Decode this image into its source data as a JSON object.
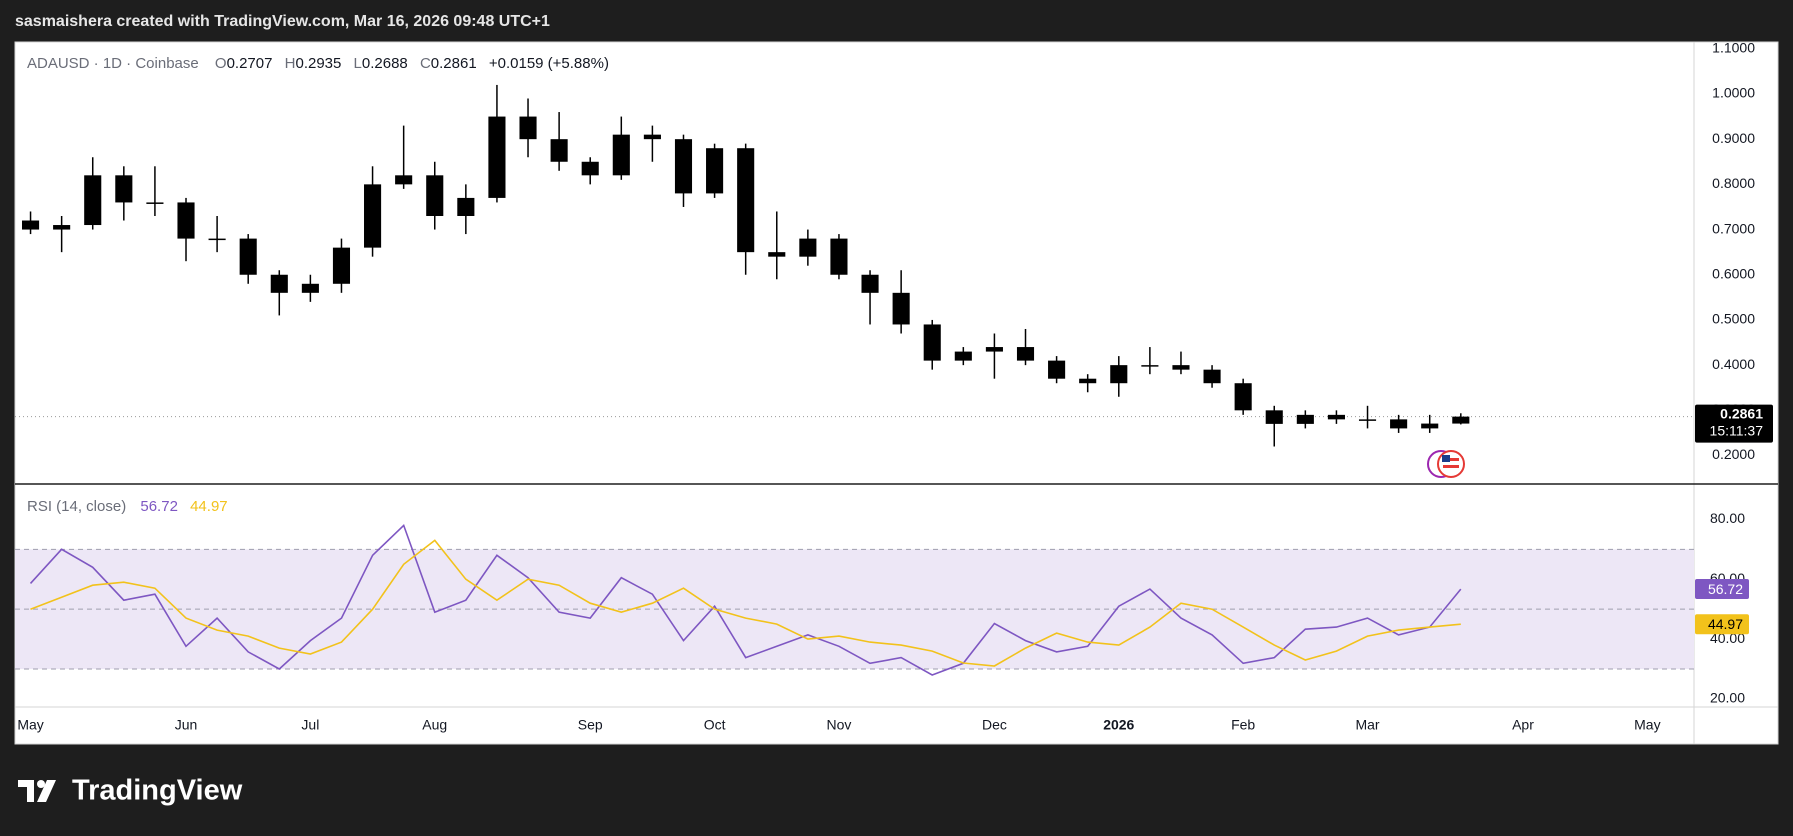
{
  "header": {
    "title": "sasmaishera created with TradingView.com, Mar 16, 2026 09:48 UTC+1"
  },
  "footer": {
    "brand": "TradingView"
  },
  "chart_data": [
    {
      "type": "candlestick",
      "title": "ADAUSD · 1D · Coinbase",
      "legend_fields": [
        "O",
        "H",
        "L",
        "C"
      ],
      "change_label": "+0.0159 (+5.88%)",
      "countdown": "15:11:37",
      "color": "#000000",
      "categories": [
        "May",
        null,
        null,
        null,
        null,
        "Jun",
        null,
        null,
        null,
        "Jul",
        null,
        null,
        null,
        "Aug",
        null,
        null,
        null,
        null,
        "Sep",
        null,
        null,
        null,
        "Oct",
        null,
        null,
        null,
        "Nov",
        null,
        null,
        null,
        null,
        "Dec",
        null,
        null,
        null,
        "2026",
        null,
        null,
        null,
        "Feb",
        null,
        null,
        null,
        "Mar",
        null,
        null,
        null,
        null,
        "Apr",
        null,
        null,
        null,
        "May",
        null
      ],
      "open": [
        0.72,
        0.7,
        0.71,
        0.82,
        0.76,
        0.76,
        0.68,
        0.68,
        0.6,
        0.56,
        0.58,
        0.66,
        0.8,
        0.82,
        0.73,
        0.77,
        0.95,
        0.9,
        0.85,
        0.82,
        0.91,
        0.9,
        0.78,
        0.88,
        0.65,
        0.64,
        0.68,
        0.6,
        0.56,
        0.49,
        0.41,
        0.43,
        0.44,
        0.41,
        0.37,
        0.36,
        0.4,
        0.4,
        0.39,
        0.36,
        0.3,
        0.27,
        0.29,
        0.28,
        0.28,
        0.26,
        0.2707,
        null,
        null,
        null,
        null,
        null,
        null,
        null
      ],
      "high": [
        0.74,
        0.73,
        0.86,
        0.84,
        0.84,
        0.77,
        0.73,
        0.69,
        0.61,
        0.6,
        0.68,
        0.84,
        0.93,
        0.85,
        0.8,
        1.02,
        0.99,
        0.96,
        0.86,
        0.95,
        0.93,
        0.91,
        0.89,
        0.89,
        0.74,
        0.7,
        0.69,
        0.61,
        0.61,
        0.5,
        0.44,
        0.47,
        0.48,
        0.42,
        0.38,
        0.42,
        0.44,
        0.43,
        0.4,
        0.37,
        0.31,
        0.3,
        0.3,
        0.31,
        0.29,
        0.29,
        0.2935,
        null,
        null,
        null,
        null,
        null,
        null,
        null
      ],
      "low": [
        0.69,
        0.65,
        0.7,
        0.72,
        0.73,
        0.63,
        0.65,
        0.58,
        0.51,
        0.54,
        0.56,
        0.64,
        0.79,
        0.7,
        0.69,
        0.76,
        0.86,
        0.83,
        0.8,
        0.81,
        0.85,
        0.75,
        0.77,
        0.6,
        0.59,
        0.62,
        0.59,
        0.49,
        0.47,
        0.39,
        0.4,
        0.37,
        0.4,
        0.36,
        0.34,
        0.33,
        0.38,
        0.38,
        0.35,
        0.29,
        0.22,
        0.26,
        0.27,
        0.26,
        0.25,
        0.25,
        0.2688,
        null,
        null,
        null,
        null,
        null,
        null,
        null
      ],
      "close": [
        0.7,
        0.71,
        0.82,
        0.76,
        0.76,
        0.68,
        0.68,
        0.6,
        0.56,
        0.58,
        0.66,
        0.8,
        0.82,
        0.73,
        0.77,
        0.95,
        0.9,
        0.85,
        0.82,
        0.91,
        0.9,
        0.78,
        0.88,
        0.65,
        0.64,
        0.68,
        0.6,
        0.56,
        0.49,
        0.41,
        0.43,
        0.44,
        0.41,
        0.37,
        0.36,
        0.4,
        0.4,
        0.39,
        0.36,
        0.3,
        0.27,
        0.29,
        0.28,
        0.28,
        0.26,
        0.2707,
        0.2861,
        null,
        null,
        null,
        null,
        null,
        null,
        null
      ],
      "ylim": [
        0.137,
        1.115
      ],
      "yticks": [
        {
          "value": 0.2,
          "label": "0.2000"
        },
        {
          "value": 0.3,
          "label": "0.3000"
        },
        {
          "value": 0.4,
          "label": "0.4000"
        },
        {
          "value": 0.5,
          "label": "0.5000"
        },
        {
          "value": 0.6,
          "label": "0.6000"
        },
        {
          "value": 0.7,
          "label": "0.7000"
        },
        {
          "value": 0.8,
          "label": "0.8000"
        },
        {
          "value": 0.9,
          "label": "0.9000"
        },
        {
          "value": 1.0,
          "label": "1.0000"
        },
        {
          "value": 1.1,
          "label": "1.1000"
        }
      ],
      "grid": false
    },
    {
      "type": "line",
      "title": "RSI (14, close)",
      "series": [
        {
          "color": "#7e57c2",
          "values": [
            58.6,
            70,
            64,
            53,
            55,
            37.6,
            47,
            35.7,
            30,
            39.5,
            47,
            68,
            78,
            49,
            53,
            68,
            60.5,
            49,
            47,
            60.5,
            55,
            39.5,
            51,
            33.8,
            37.6,
            41.4,
            37.6,
            31.9,
            33.8,
            28,
            31.9,
            45.2,
            39.5,
            35.7,
            37.6,
            51,
            56.7,
            47,
            41.4,
            31.9,
            33.8,
            43.3,
            44,
            47,
            41.4,
            44,
            56.72,
            null,
            null,
            null,
            null,
            null,
            null,
            null
          ]
        },
        {
          "color": "#f2c21b",
          "values": [
            50,
            54,
            58,
            59,
            57,
            47,
            43,
            41,
            37,
            35,
            39,
            50,
            65,
            73,
            60,
            53,
            60,
            58,
            52,
            49,
            52,
            57,
            50,
            47,
            45,
            40,
            41,
            39,
            38,
            36,
            32,
            31,
            37,
            42,
            39,
            38,
            44,
            52,
            50,
            44,
            38,
            33,
            36,
            41,
            43,
            44,
            44.97,
            null,
            null,
            null,
            null,
            null,
            null,
            null
          ]
        }
      ],
      "hlines": [
        70,
        50,
        30
      ],
      "band_color": "#ede7f6",
      "ylim": [
        17.3,
        91.5
      ],
      "yticks": [
        {
          "value": 20,
          "label": "20.00"
        },
        {
          "value": 40,
          "label": "40.00"
        },
        {
          "value": 60,
          "label": "60.00"
        },
        {
          "value": 80,
          "label": "80.00"
        }
      ],
      "grid": false
    }
  ]
}
